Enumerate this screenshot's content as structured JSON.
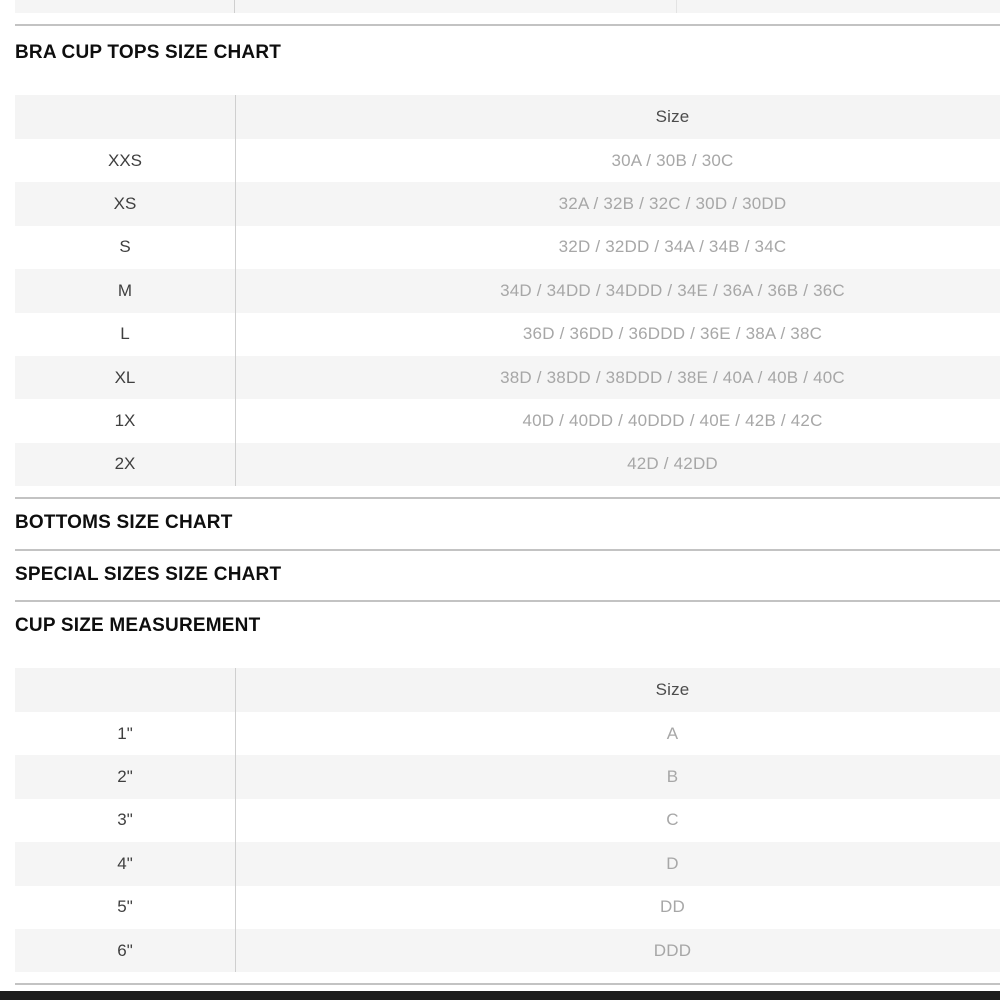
{
  "sections": {
    "bra_cup_tops": {
      "heading": "BRA CUP TOPS SIZE CHART",
      "table": {
        "header": {
          "size_col": "Size"
        },
        "rows": [
          {
            "label": "XXS",
            "size": "30A / 30B / 30C"
          },
          {
            "label": "XS",
            "size": "32A / 32B / 32C / 30D / 30DD"
          },
          {
            "label": "S",
            "size": "32D / 32DD / 34A / 34B / 34C"
          },
          {
            "label": "M",
            "size": "34D / 34DD / 34DDD / 34E / 36A / 36B / 36C"
          },
          {
            "label": "L",
            "size": "36D / 36DD / 36DDD / 36E / 38A / 38C"
          },
          {
            "label": "XL",
            "size": "38D / 38DD / 38DDD / 38E / 40A / 40B / 40C"
          },
          {
            "label": "1X",
            "size": "40D / 40DD / 40DDD / 40E / 42B / 42C"
          },
          {
            "label": "2X",
            "size": "42D / 42DD"
          }
        ]
      }
    },
    "bottoms": {
      "heading": "BOTTOMS SIZE CHART"
    },
    "special_sizes": {
      "heading": "SPECIAL SIZES SIZE CHART"
    },
    "cup_size_measurement": {
      "heading": "CUP SIZE MEASUREMENT",
      "table": {
        "header": {
          "size_col": "Size"
        },
        "rows": [
          {
            "label": "1\"",
            "size": "A"
          },
          {
            "label": "2\"",
            "size": "B"
          },
          {
            "label": "3\"",
            "size": "C"
          },
          {
            "label": "4\"",
            "size": "D"
          },
          {
            "label": "5\"",
            "size": "DD"
          },
          {
            "label": "6\"",
            "size": "DDD"
          }
        ]
      }
    }
  },
  "colors": {
    "row_alt_bg": "#f5f5f5",
    "table_header_bg": "#f4f4f4",
    "section_divider": "#c3c3c3",
    "table_vertical_rule": "#cfcfcf",
    "row_label_text": "#3f3f3f",
    "size_value_text": "#a7a7a7",
    "size_header_text": "#4c4c4c",
    "heading_text": "#0e0e0e",
    "bottom_bar": "#1c1c1c"
  }
}
